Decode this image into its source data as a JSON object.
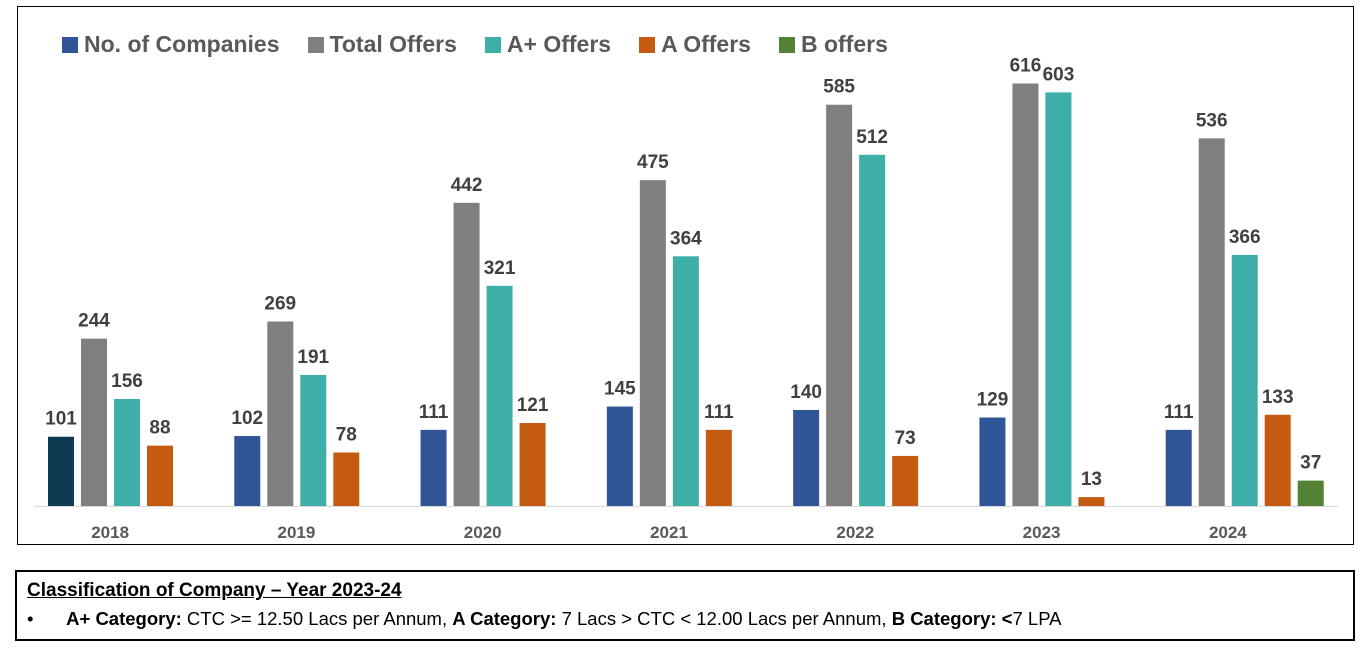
{
  "chart_data": {
    "type": "bar",
    "categories": [
      "2018",
      "2019",
      "2020",
      "2021",
      "2022",
      "2023",
      "2024"
    ],
    "series": [
      {
        "name": "No. of Companies",
        "color": "#2F5597",
        "values": [
          101,
          102,
          111,
          145,
          140,
          129,
          111
        ]
      },
      {
        "name": "Total Offers",
        "color": "#7F7F7F",
        "values": [
          244,
          269,
          442,
          475,
          585,
          616,
          536
        ]
      },
      {
        "name": "A+ Offers",
        "color": "#3DAFA8",
        "values": [
          156,
          191,
          321,
          364,
          512,
          603,
          null
        ]
      },
      {
        "name": "A Offers",
        "color": "#C55A11",
        "values": [
          88,
          78,
          121,
          111,
          73,
          13,
          133
        ]
      },
      {
        "name": "B offers",
        "color": "#548235",
        "values": [
          null,
          null,
          null,
          null,
          null,
          null,
          37
        ]
      }
    ],
    "extra_points": [
      {
        "category": "2024",
        "series": "A+ Offers",
        "value": 366
      }
    ],
    "highlight_point": {
      "category": "2018",
      "series": "No. of Companies",
      "color": "#0E3A52"
    },
    "ylim": [
      0,
      640
    ],
    "grid": false,
    "legend_position": "top-left"
  },
  "note": {
    "title": "Classification of Company – Year 2023-24",
    "bullet": "•",
    "parts": [
      {
        "label": "A+ Category:",
        "text": " CTC >= 12.50 Lacs per Annum, "
      },
      {
        "label": "A Category:",
        "text": " 7 Lacs > CTC < 12.00 Lacs per Annum, "
      },
      {
        "label": "B Category: <",
        "text": "7 LPA"
      }
    ]
  }
}
